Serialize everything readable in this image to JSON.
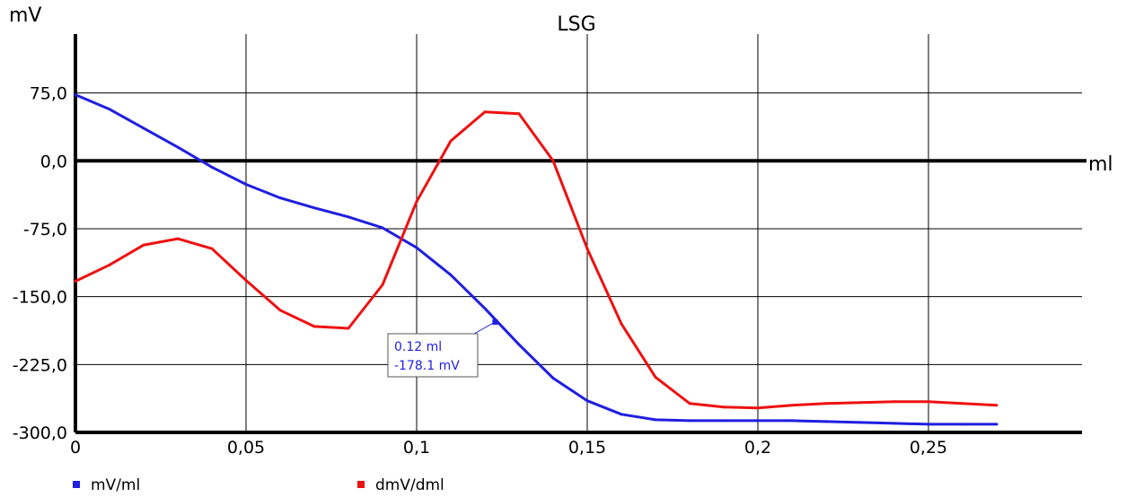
{
  "chart_data": {
    "type": "line",
    "title": "LSG",
    "ylabel": "mV",
    "xlabel": "ml",
    "xlim": [
      0,
      0.295
    ],
    "ylim": [
      -300,
      140
    ],
    "x_ticks": [
      0,
      0.05,
      0.1,
      0.15,
      0.2,
      0.25
    ],
    "x_tick_labels": [
      "0",
      "0,05",
      "0,1",
      "0,15",
      "0,2",
      "0,25"
    ],
    "y_ticks": [
      75,
      0,
      -75,
      -150,
      -225,
      -300
    ],
    "y_tick_labels": [
      "75,0",
      "0,0",
      "-75,0",
      "-150,0",
      "-225,0",
      "-300,0"
    ],
    "grid": true,
    "legend_position": "bottom-left",
    "series": [
      {
        "name": "mV/ml",
        "color": "#1f1fe0",
        "x": [
          0,
          0.01,
          0.02,
          0.03,
          0.04,
          0.05,
          0.06,
          0.07,
          0.08,
          0.09,
          0.1,
          0.11,
          0.12,
          0.13,
          0.14,
          0.15,
          0.16,
          0.17,
          0.18,
          0.19,
          0.2,
          0.21,
          0.22,
          0.23,
          0.24,
          0.25,
          0.26,
          0.27
        ],
        "y": [
          73,
          57,
          36,
          15,
          -7,
          -26,
          -41,
          -52,
          -62,
          -74,
          -96,
          -126,
          -163,
          -203,
          -240,
          -265,
          -280,
          -286,
          -287,
          -287,
          -287,
          -287,
          -288,
          -289,
          -290,
          -291,
          -291,
          -291
        ]
      },
      {
        "name": "dmV/dml",
        "color": "#ee1111",
        "x": [
          0,
          0.01,
          0.02,
          0.03,
          0.04,
          0.05,
          0.06,
          0.07,
          0.08,
          0.09,
          0.1,
          0.11,
          0.12,
          0.13,
          0.14,
          0.15,
          0.16,
          0.17,
          0.18,
          0.19,
          0.2,
          0.21,
          0.22,
          0.23,
          0.24,
          0.25,
          0.26,
          0.27
        ],
        "y": [
          -133,
          -115,
          -93,
          -86,
          -97,
          -132,
          -165,
          -183,
          -185,
          -137,
          -45,
          22,
          54,
          52,
          0,
          -97,
          -180,
          -239,
          -268,
          -272,
          -273,
          -270,
          -268,
          -267,
          -266,
          -266,
          -268,
          -270
        ]
      }
    ],
    "annotation": {
      "x": 0.123,
      "y": -178.1,
      "line1": "0.12 ml",
      "line2": "-178.1 mV",
      "color": "#1f1fe0"
    }
  }
}
